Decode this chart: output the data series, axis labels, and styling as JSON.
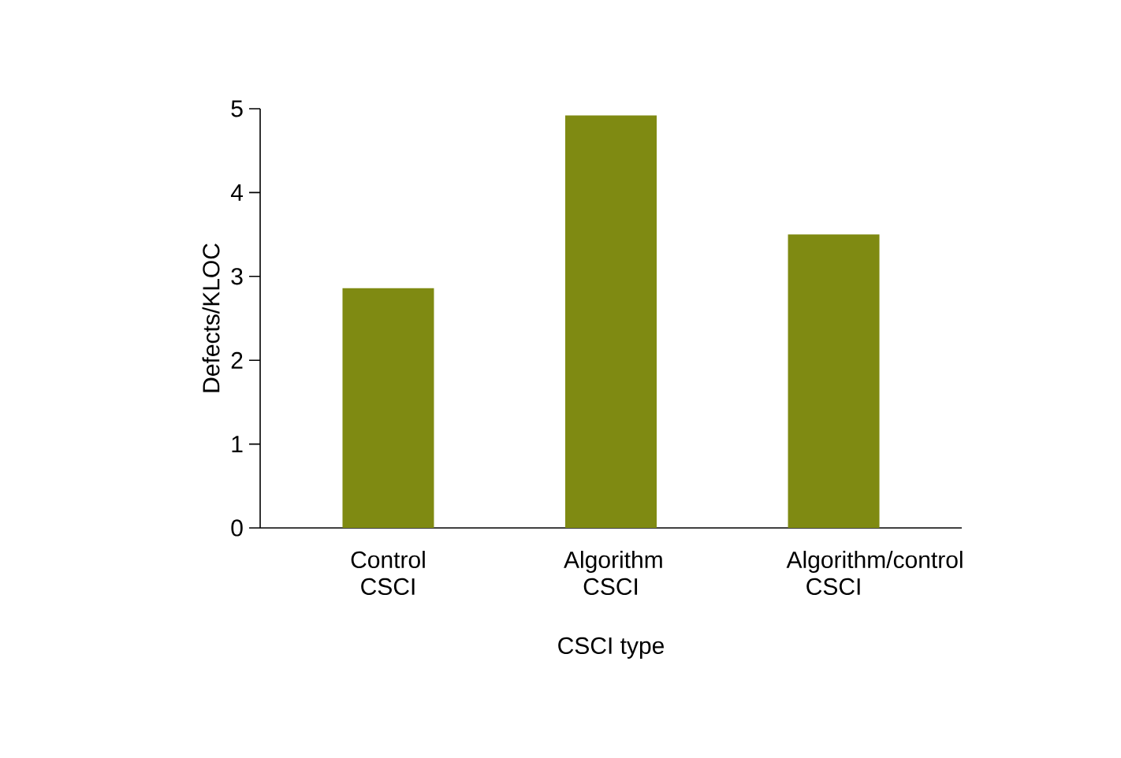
{
  "chart_data": {
    "type": "bar",
    "xlabel": "CSCI type",
    "ylabel": "Defects/KLOC",
    "categories": [
      "Control CSCI",
      "Algorithm CSCI",
      "Algorithm/control CSCI"
    ],
    "values": [
      2.86,
      4.92,
      3.5
    ],
    "color": "#7f8a12",
    "ylim": [
      0,
      5
    ],
    "yticks": [
      0,
      1,
      2,
      3,
      4,
      5
    ]
  }
}
